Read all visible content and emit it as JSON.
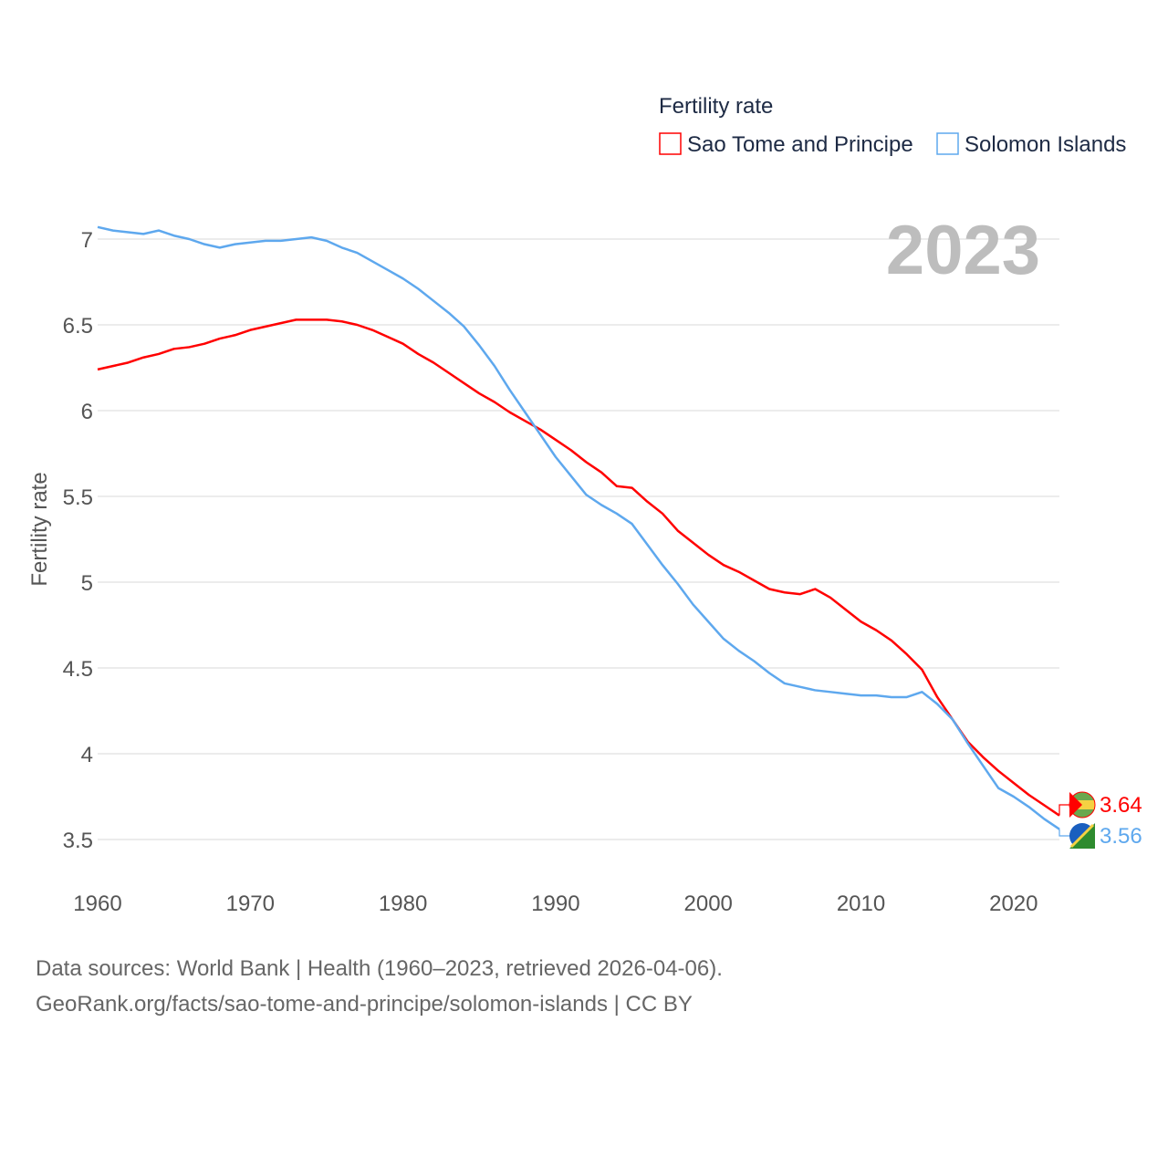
{
  "chart_data": {
    "type": "line",
    "title": "Fertility rate",
    "xlabel": "",
    "ylabel": "Fertility rate",
    "xlim": [
      1960,
      2023
    ],
    "ylim": [
      3.5,
      7.2
    ],
    "grid": true,
    "legend_placement": "top-right",
    "year_label": "2023",
    "x_ticks": [
      1960,
      1970,
      1980,
      1990,
      2000,
      2010,
      2020
    ],
    "y_ticks": [
      3.5,
      4,
      4.5,
      5,
      5.5,
      6,
      6.5,
      7
    ],
    "x": [
      1960,
      1961,
      1962,
      1963,
      1964,
      1965,
      1966,
      1967,
      1968,
      1969,
      1970,
      1971,
      1972,
      1973,
      1974,
      1975,
      1976,
      1977,
      1978,
      1979,
      1980,
      1981,
      1982,
      1983,
      1984,
      1985,
      1986,
      1987,
      1988,
      1989,
      1990,
      1991,
      1992,
      1993,
      1994,
      1995,
      1996,
      1997,
      1998,
      1999,
      2000,
      2001,
      2002,
      2003,
      2004,
      2005,
      2006,
      2007,
      2008,
      2009,
      2010,
      2011,
      2012,
      2013,
      2014,
      2015,
      2016,
      2017,
      2018,
      2019,
      2020,
      2021,
      2022,
      2023
    ],
    "series": [
      {
        "name": "Sao Tome and Principe",
        "color": "#ff0000",
        "end_label": "3.64",
        "values": [
          6.24,
          6.26,
          6.28,
          6.31,
          6.33,
          6.36,
          6.37,
          6.39,
          6.42,
          6.44,
          6.47,
          6.49,
          6.51,
          6.53,
          6.53,
          6.53,
          6.52,
          6.5,
          6.47,
          6.43,
          6.39,
          6.33,
          6.28,
          6.22,
          6.16,
          6.1,
          6.05,
          5.99,
          5.94,
          5.89,
          5.83,
          5.77,
          5.7,
          5.64,
          5.56,
          5.55,
          5.47,
          5.4,
          5.3,
          5.23,
          5.16,
          5.1,
          5.06,
          5.01,
          4.96,
          4.94,
          4.93,
          4.96,
          4.91,
          4.84,
          4.77,
          4.72,
          4.66,
          4.58,
          4.49,
          4.33,
          4.2,
          4.07,
          3.98,
          3.9,
          3.83,
          3.76,
          3.7,
          3.64
        ]
      },
      {
        "name": "Solomon Islands",
        "color": "#5ea8ee",
        "end_label": "3.56",
        "values": [
          7.07,
          7.05,
          7.04,
          7.03,
          7.05,
          7.02,
          7.0,
          6.97,
          6.95,
          6.97,
          6.98,
          6.99,
          6.99,
          7.0,
          7.01,
          6.99,
          6.95,
          6.92,
          6.87,
          6.82,
          6.77,
          6.71,
          6.64,
          6.57,
          6.49,
          6.38,
          6.26,
          6.12,
          5.99,
          5.86,
          5.73,
          5.62,
          5.51,
          5.45,
          5.4,
          5.34,
          5.22,
          5.1,
          4.99,
          4.87,
          4.77,
          4.67,
          4.6,
          4.54,
          4.47,
          4.41,
          4.39,
          4.37,
          4.36,
          4.35,
          4.34,
          4.34,
          4.33,
          4.33,
          4.36,
          4.29,
          4.2,
          4.06,
          3.93,
          3.8,
          3.75,
          3.69,
          3.62,
          3.56
        ]
      }
    ]
  },
  "footer": {
    "line1": "Data sources: World Bank | Health (1960–2023, retrieved 2026-04-06).",
    "line2": "GeoRank.org/facts/sao-tome-and-principe/solomon-islands | CC BY"
  }
}
